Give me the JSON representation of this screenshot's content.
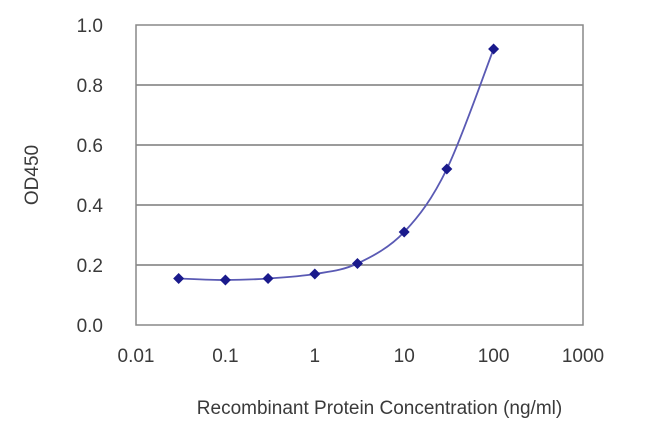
{
  "chart_data": {
    "type": "line",
    "title": "",
    "xlabel": "Recombinant Protein Concentration (ng/ml)",
    "ylabel": "OD450",
    "x_scale": "log",
    "xlim": [
      0.01,
      1000
    ],
    "ylim": [
      0.0,
      1.0
    ],
    "x_ticks": [
      "0.01",
      "0.1",
      "1",
      "10",
      "100",
      "1000"
    ],
    "y_ticks": [
      "0.0",
      "0.2",
      "0.4",
      "0.6",
      "0.8",
      "1.0"
    ],
    "grid": "horizontal",
    "legend": "none",
    "series": [
      {
        "x": [
          0.03,
          0.1,
          0.3,
          1,
          3,
          10,
          30,
          100
        ],
        "y": [
          0.155,
          0.15,
          0.155,
          0.17,
          0.205,
          0.31,
          0.52,
          0.92
        ],
        "color": "#1a1a8c",
        "marker": "diamond"
      }
    ]
  }
}
